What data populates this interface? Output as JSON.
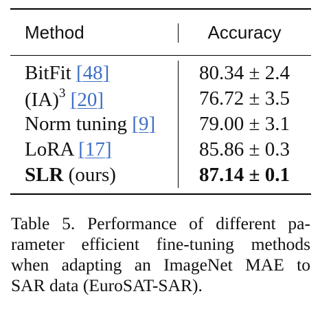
{
  "table": {
    "headers": {
      "method": "Method",
      "accuracy": "Accuracy"
    },
    "rows": [
      {
        "method": "BitFit",
        "ref": "[48]",
        "accuracy": "80.34 ± 2.4"
      },
      {
        "method": "(IA)",
        "sup": "3",
        "ref": "[20]",
        "accuracy": "76.72 ± 3.5"
      },
      {
        "method": "Norm tuning",
        "ref": "[9]",
        "accuracy": "79.00 ± 3.1"
      },
      {
        "method": "LoRA",
        "ref": "[17]",
        "accuracy": "85.86 ± 0.3"
      },
      {
        "method": "SLR",
        "suffix": "(ours)",
        "accuracy": "87.14 ± 0.1"
      }
    ]
  },
  "caption": {
    "lines": [
      "Table 5.  Performance of different pa-",
      "rameter efficient fine-tuning methods",
      "when adapting an ImageNet MAE to",
      "SAR data (EuroSAT-SAR)."
    ]
  }
}
